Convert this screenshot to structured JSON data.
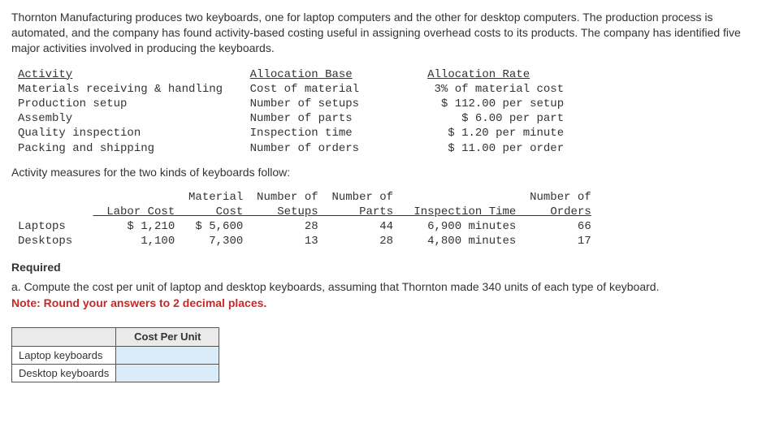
{
  "intro": "Thornton Manufacturing produces two keyboards, one for laptop computers and the other for desktop computers. The production process is automated, and the company has found activity-based costing useful in assigning overhead costs to its products. The company has identified five major activities involved in producing the keyboards.",
  "activity_table": {
    "headers": {
      "c0": "Activity",
      "c1": "Allocation Base",
      "c2": "Allocation Rate"
    },
    "rows": [
      {
        "activity": "Materials receiving & handling",
        "base": "Cost of material",
        "rate": "3% of material cost"
      },
      {
        "activity": "Production setup",
        "base": "Number of setups",
        "rate": "$ 112.00 per setup"
      },
      {
        "activity": "Assembly",
        "base": "Number of parts",
        "rate": "$ 6.00 per part"
      },
      {
        "activity": "Quality inspection",
        "base": "Inspection time",
        "rate": "$ 1.20 per minute"
      },
      {
        "activity": "Packing and shipping",
        "base": "Number of orders",
        "rate": "$ 11.00 per order"
      }
    ]
  },
  "measures_intro": "Activity measures for the two kinds of keyboards follow:",
  "measures_table": {
    "headers": {
      "labor": "Labor Cost",
      "material": "Material\nCost",
      "setups": "Number of\nSetups",
      "parts": "Number of\nParts",
      "inspection": "Inspection Time",
      "orders": "Number of\nOrders"
    },
    "rows": [
      {
        "name": "Laptops",
        "labor": "$ 1,210",
        "material": "$ 5,600",
        "setups": "28",
        "parts": "44",
        "inspection": "6,900 minutes",
        "orders": "66"
      },
      {
        "name": "Desktops",
        "labor": "1,100",
        "material": "7,300",
        "setups": "13",
        "parts": "28",
        "inspection": "4,800 minutes",
        "orders": "17"
      }
    ]
  },
  "required_label": "Required",
  "question_a": "a. Compute the cost per unit of laptop and desktop keyboards, assuming that Thornton made 340 units of each type of keyboard.",
  "note": "Note: Round your answers to 2 decimal places.",
  "answer_table": {
    "col_header": "Cost Per Unit",
    "rows": [
      {
        "label": "Laptop keyboards"
      },
      {
        "label": "Desktop keyboards"
      }
    ]
  }
}
